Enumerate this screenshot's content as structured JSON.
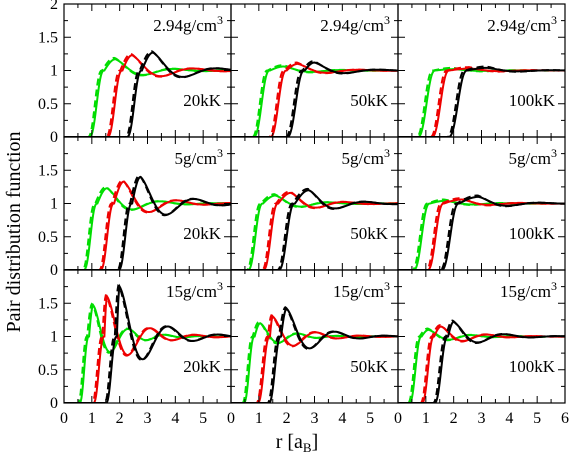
{
  "figure": {
    "ylabel": "Pair distribution function",
    "xlabel_main": "r [a",
    "xlabel_sub": "B",
    "xlabel_close": "]"
  },
  "chart_data": {
    "type": "line",
    "layout": "3x3 grid of panels (rows share density, columns share temperature)",
    "xlim": [
      0,
      6
    ],
    "xticks": [
      "0",
      "1",
      "2",
      "3",
      "4",
      "5",
      "6"
    ],
    "ylim": [
      0,
      2
    ],
    "yticks": [
      "0",
      "0.5",
      "1",
      "1.5",
      "2"
    ],
    "xlabel": "r [aB]",
    "ylabel": "Pair distribution function",
    "line_styles": {
      "solid": "solid",
      "dashed": "dashed"
    },
    "colors": {
      "green": "#00dd00",
      "red": "#ee0000",
      "black": "#000000"
    },
    "rows": [
      {
        "density_value": "2.94",
        "density_unit": "g/cm",
        "density_exp": "3",
        "panels": [
          {
            "temperature": "20kK",
            "curves": {
              "green": {
                "onset": 0.9,
                "width": 0.55,
                "peak_r": 1.85,
                "peak_g": 1.17,
                "decay": 1.1,
                "period": 2.2
              },
              "red": {
                "onset": 1.55,
                "width": 0.55,
                "peak_r": 2.45,
                "peak_g": 1.23,
                "decay": 1.1,
                "period": 2.3
              },
              "black": {
                "onset": 2.25,
                "width": 0.55,
                "peak_r": 3.2,
                "peak_g": 1.27,
                "decay": 1.1,
                "period": 2.4
              }
            }
          },
          {
            "temperature": "50kK",
            "curves": {
              "green": {
                "onset": 0.8,
                "width": 0.6,
                "peak_r": 1.9,
                "peak_g": 1.06,
                "decay": 1.0,
                "period": 2.2
              },
              "red": {
                "onset": 1.4,
                "width": 0.6,
                "peak_r": 2.4,
                "peak_g": 1.1,
                "decay": 1.0,
                "period": 2.3
              },
              "black": {
                "onset": 2.0,
                "width": 0.65,
                "peak_r": 3.0,
                "peak_g": 1.12,
                "decay": 1.0,
                "period": 2.4
              }
            }
          },
          {
            "temperature": "100kK",
            "curves": {
              "green": {
                "onset": 0.7,
                "width": 0.65,
                "peak_r": 2.0,
                "peak_g": 1.02,
                "decay": 1.0,
                "period": 2.4
              },
              "red": {
                "onset": 1.2,
                "width": 0.65,
                "peak_r": 2.6,
                "peak_g": 1.03,
                "decay": 1.0,
                "period": 2.4
              },
              "black": {
                "onset": 1.8,
                "width": 0.7,
                "peak_r": 3.2,
                "peak_g": 1.04,
                "decay": 1.0,
                "period": 2.5
              }
            }
          }
        ]
      },
      {
        "density_value": "5",
        "density_unit": "g/cm",
        "density_exp": "3",
        "panels": [
          {
            "temperature": "20kK",
            "curves": {
              "green": {
                "onset": 0.7,
                "width": 0.5,
                "peak_r": 1.55,
                "peak_g": 1.23,
                "decay": 1.0,
                "period": 2.0
              },
              "red": {
                "onset": 1.3,
                "width": 0.5,
                "peak_r": 2.15,
                "peak_g": 1.33,
                "decay": 1.0,
                "period": 2.0
              },
              "black": {
                "onset": 1.95,
                "width": 0.5,
                "peak_r": 2.75,
                "peak_g": 1.4,
                "decay": 1.1,
                "period": 2.0
              }
            }
          },
          {
            "temperature": "50kK",
            "curves": {
              "green": {
                "onset": 0.6,
                "width": 0.55,
                "peak_r": 1.6,
                "peak_g": 1.12,
                "decay": 1.0,
                "period": 2.0
              },
              "red": {
                "onset": 1.15,
                "width": 0.55,
                "peak_r": 2.15,
                "peak_g": 1.16,
                "decay": 1.0,
                "period": 2.0
              },
              "black": {
                "onset": 1.7,
                "width": 0.6,
                "peak_r": 2.8,
                "peak_g": 1.2,
                "decay": 1.0,
                "period": 2.1
              }
            }
          },
          {
            "temperature": "100kK",
            "curves": {
              "green": {
                "onset": 0.55,
                "width": 0.6,
                "peak_r": 1.7,
                "peak_g": 1.04,
                "decay": 1.0,
                "period": 2.2
              },
              "red": {
                "onset": 1.05,
                "width": 0.6,
                "peak_r": 2.3,
                "peak_g": 1.06,
                "decay": 1.0,
                "period": 2.2
              },
              "black": {
                "onset": 1.55,
                "width": 0.65,
                "peak_r": 2.9,
                "peak_g": 1.1,
                "decay": 1.0,
                "period": 2.3
              }
            }
          }
        ]
      },
      {
        "density_value": "15",
        "density_unit": "g/cm",
        "density_exp": "3",
        "panels": [
          {
            "temperature": "20kK",
            "curves": {
              "green": {
                "onset": 0.55,
                "width": 0.35,
                "peak_r": 1.05,
                "peak_g": 1.47,
                "decay": 0.9,
                "period": 1.3
              },
              "red": {
                "onset": 1.05,
                "width": 0.4,
                "peak_r": 1.55,
                "peak_g": 1.6,
                "decay": 1.0,
                "period": 1.6
              },
              "black": {
                "onset": 1.5,
                "width": 0.4,
                "peak_r": 2.0,
                "peak_g": 1.75,
                "decay": 1.1,
                "period": 1.8
              }
            }
          },
          {
            "temperature": "50kK",
            "curves": {
              "green": {
                "onset": 0.45,
                "width": 0.4,
                "peak_r": 1.05,
                "peak_g": 1.2,
                "decay": 0.9,
                "period": 1.4
              },
              "red": {
                "onset": 0.95,
                "width": 0.45,
                "peak_r": 1.5,
                "peak_g": 1.3,
                "decay": 1.0,
                "period": 1.6
              },
              "black": {
                "onset": 1.35,
                "width": 0.45,
                "peak_r": 2.0,
                "peak_g": 1.42,
                "decay": 1.0,
                "period": 1.8
              }
            }
          },
          {
            "temperature": "100kK",
            "curves": {
              "green": {
                "onset": 0.4,
                "width": 0.45,
                "peak_r": 1.1,
                "peak_g": 1.1,
                "decay": 1.0,
                "period": 1.6
              },
              "red": {
                "onset": 0.85,
                "width": 0.45,
                "peak_r": 1.55,
                "peak_g": 1.15,
                "decay": 1.0,
                "period": 1.7
              },
              "black": {
                "onset": 1.3,
                "width": 0.5,
                "peak_r": 2.0,
                "peak_g": 1.22,
                "decay": 1.0,
                "period": 1.9
              }
            }
          }
        ]
      }
    ]
  }
}
